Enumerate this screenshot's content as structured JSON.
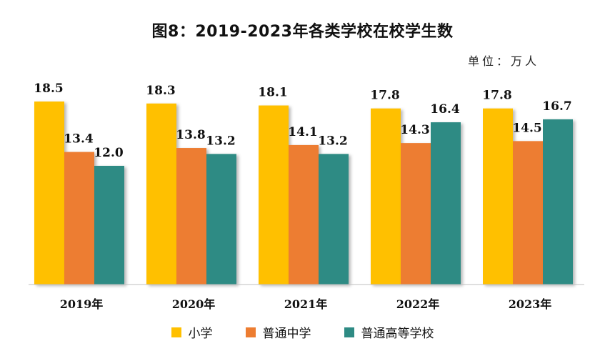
{
  "chart_data": {
    "type": "bar",
    "title": "图8：2019-2023年各类学校在校学生数",
    "unit": "单位：万人",
    "categories": [
      "2019年",
      "2020年",
      "2021年",
      "2022年",
      "2023年"
    ],
    "series": [
      {
        "name": "小学",
        "values": [
          18.5,
          18.3,
          18.1,
          17.8,
          17.8
        ],
        "color": "#FFC000"
      },
      {
        "name": "普通中学",
        "values": [
          13.4,
          13.8,
          14.1,
          14.3,
          14.5
        ],
        "color": "#ED7D31"
      },
      {
        "name": "普通高等学校",
        "values": [
          12.0,
          13.2,
          13.2,
          16.4,
          16.7
        ],
        "color": "#2E8B84"
      }
    ],
    "ylim": [
      0,
      20
    ],
    "grid": false,
    "legend": "bottom"
  }
}
